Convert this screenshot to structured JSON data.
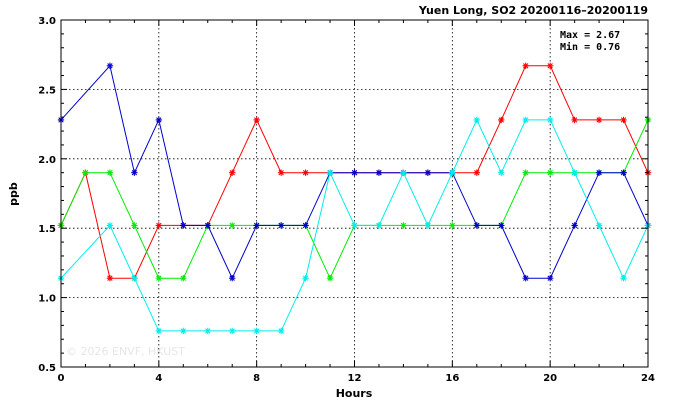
{
  "chart_data": {
    "type": "line",
    "title": "Yuen Long, SO2 20200116–20200119",
    "xlabel": "Hours",
    "ylabel": "ppb",
    "xlim": [
      0,
      24
    ],
    "ylim": [
      0.5,
      3.0
    ],
    "xticks": [
      0,
      4,
      8,
      12,
      16,
      20,
      24
    ],
    "xtick_labels": [
      "0",
      "4",
      "8",
      "12",
      "16",
      "20",
      "24"
    ],
    "yticks": [
      0.5,
      1.0,
      1.5,
      2.0,
      2.5,
      3.0
    ],
    "ytick_labels": [
      "0.5",
      "1.0",
      "1.5",
      "2.0",
      "2.5",
      "3.0"
    ],
    "grid": true,
    "x": [
      0,
      1,
      2,
      3,
      4,
      5,
      6,
      7,
      8,
      9,
      10,
      11,
      12,
      13,
      14,
      15,
      16,
      17,
      18,
      19,
      20,
      21,
      22,
      23,
      24
    ],
    "series": [
      {
        "color": "#ff0000",
        "values": [
          1.52,
          1.9,
          1.14,
          1.14,
          1.52,
          1.52,
          1.52,
          1.9,
          2.28,
          1.9,
          1.9,
          1.9,
          1.9,
          1.9,
          1.9,
          1.9,
          1.9,
          1.9,
          2.28,
          2.67,
          2.67,
          2.28,
          2.28,
          2.28,
          1.9
        ]
      },
      {
        "color": "#00ee00",
        "values": [
          1.52,
          1.9,
          1.9,
          1.52,
          1.14,
          1.14,
          1.52,
          1.52,
          1.52,
          1.52,
          1.52,
          1.14,
          1.52,
          1.52,
          1.52,
          1.52,
          1.52,
          1.52,
          1.52,
          1.9,
          1.9,
          1.9,
          1.9,
          1.9,
          2.28
        ]
      },
      {
        "color": "#0000cc",
        "values": [
          2.28,
          null,
          2.67,
          1.9,
          2.28,
          1.52,
          1.52,
          1.14,
          1.52,
          1.52,
          1.52,
          1.9,
          1.9,
          1.9,
          1.9,
          1.9,
          1.9,
          1.52,
          1.52,
          1.14,
          1.14,
          1.52,
          1.9,
          1.9,
          1.52
        ]
      },
      {
        "color": "#00eeee",
        "values": [
          1.14,
          null,
          1.52,
          1.14,
          0.76,
          0.76,
          0.76,
          0.76,
          0.76,
          0.76,
          1.14,
          1.9,
          1.52,
          1.52,
          1.9,
          1.52,
          1.9,
          2.28,
          1.9,
          2.28,
          2.28,
          1.9,
          1.52,
          1.14,
          1.52
        ]
      }
    ],
    "annotations": [
      "Max = 2.67",
      "Min = 0.76"
    ],
    "watermark": "© 2026  ENVF, HKUST"
  }
}
